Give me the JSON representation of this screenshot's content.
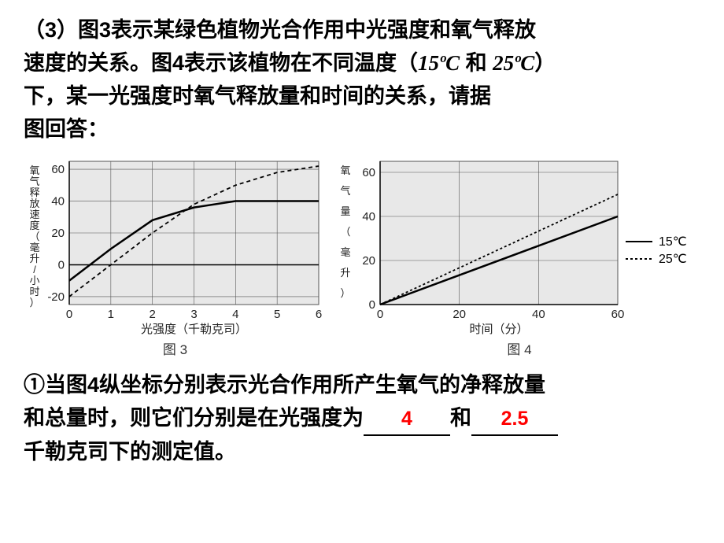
{
  "question": {
    "leader": "（3）",
    "line1a": "图3表示某绿色植物光合作用中光强度和氧气释放",
    "line2a": "速度的关系。图4表示该植物在不同温度（",
    "temp1": "15ºC",
    "and": " 和 ",
    "temp2": "25ºC",
    "line2b": "）",
    "line3": "下，某一光强度时氧气释放量和时间的关系，请据",
    "line4": "图回答："
  },
  "chart3": {
    "type": "line",
    "ylabel": "氧气释放速度（毫升/小时）",
    "xlabel": "光强度（千勒克司）",
    "caption": "图 3",
    "xlim": [
      0,
      6
    ],
    "ylim": [
      -25,
      65
    ],
    "xticks": [
      0,
      1,
      2,
      3,
      4,
      5,
      6
    ],
    "yticks": [
      -20,
      0,
      20,
      40,
      60
    ],
    "background_color": "#e8e8e8",
    "grid_color": "#555555",
    "axis_color": "#000000",
    "series": [
      {
        "name": "solid",
        "color": "#000000",
        "width": 2.5,
        "dash": "none",
        "points": [
          [
            0,
            -10
          ],
          [
            1,
            10
          ],
          [
            2,
            28
          ],
          [
            3,
            36
          ],
          [
            4,
            40
          ],
          [
            5,
            40
          ],
          [
            6,
            40
          ]
        ]
      },
      {
        "name": "dashed",
        "color": "#000000",
        "width": 1.8,
        "dash": "5,4",
        "points": [
          [
            0,
            -20
          ],
          [
            1,
            0
          ],
          [
            2,
            20
          ],
          [
            3,
            38
          ],
          [
            4,
            50
          ],
          [
            5,
            58
          ],
          [
            6,
            62
          ]
        ]
      }
    ]
  },
  "chart4": {
    "type": "line",
    "ylabel": "氧气量（毫升）",
    "xlabel": "时间（分）",
    "caption": "图 4",
    "xlim": [
      0,
      60
    ],
    "ylim": [
      0,
      65
    ],
    "xticks": [
      0,
      20,
      40,
      60
    ],
    "yticks": [
      0,
      20,
      40,
      60
    ],
    "background_color": "#e8e8e8",
    "grid_color": "#555555",
    "axis_color": "#000000",
    "series": [
      {
        "name": "15C",
        "color": "#000000",
        "width": 2.5,
        "dash": "none",
        "points": [
          [
            0,
            0
          ],
          [
            60,
            40
          ]
        ]
      },
      {
        "name": "25C",
        "color": "#000000",
        "width": 1.8,
        "dash": "3,3",
        "points": [
          [
            0,
            0
          ],
          [
            60,
            50
          ]
        ]
      }
    ],
    "legend": {
      "items": [
        {
          "label": "15℃",
          "dash": "none"
        },
        {
          "label": "25℃",
          "dash": "3,3"
        }
      ]
    }
  },
  "answer": {
    "prefix": "①当图4纵坐标分别表示光合作用所产生氧气的净释放量",
    "line2a": "和总量时，则它们分别是在光强度为",
    "blank1": "4",
    "mid": "和",
    "blank2": "2.5",
    "line3": "千勒克司下的测定值。"
  }
}
